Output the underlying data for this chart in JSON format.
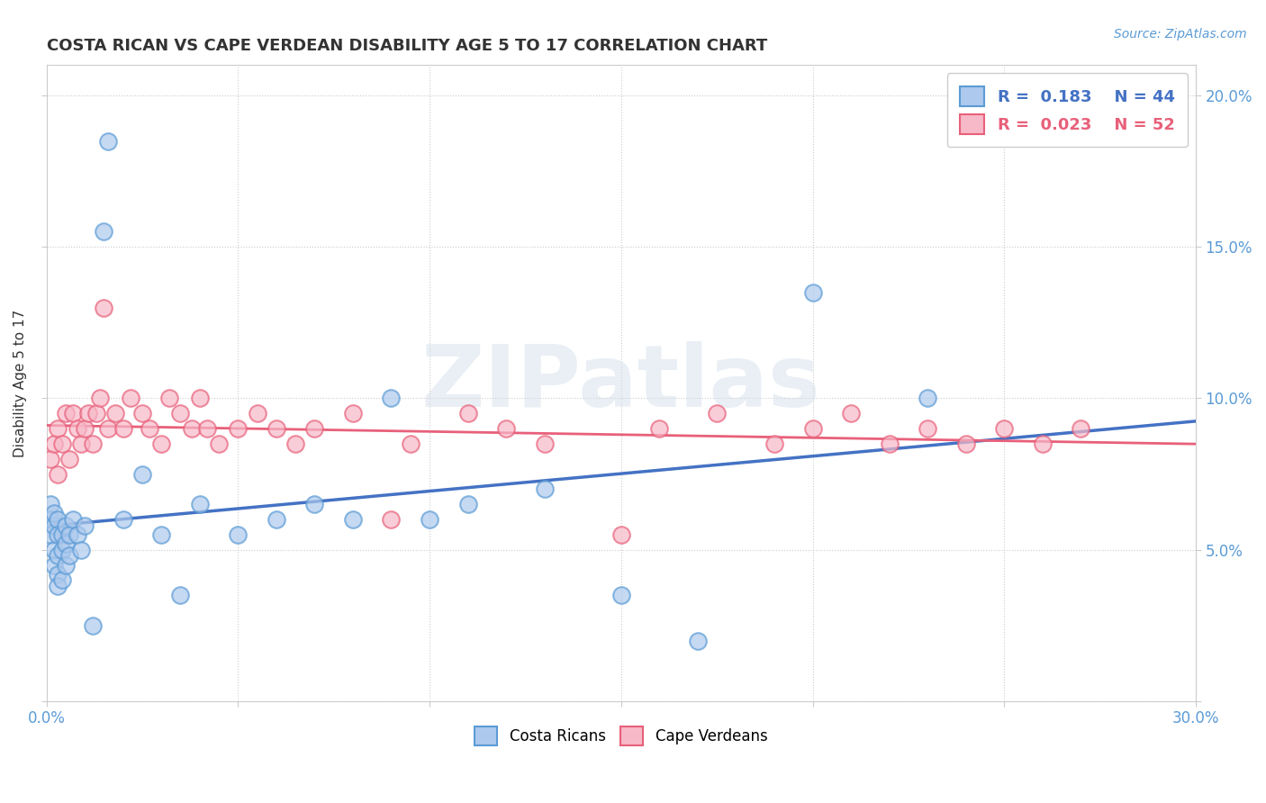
{
  "title": "COSTA RICAN VS CAPE VERDEAN DISABILITY AGE 5 TO 17 CORRELATION CHART",
  "source": "Source: ZipAtlas.com",
  "ylabel": "Disability Age 5 to 17",
  "xlim": [
    0.0,
    0.3
  ],
  "ylim": [
    0.0,
    0.21
  ],
  "xticks": [
    0.0,
    0.05,
    0.1,
    0.15,
    0.2,
    0.25,
    0.3
  ],
  "yticks": [
    0.0,
    0.05,
    0.1,
    0.15,
    0.2
  ],
  "legend_r1": "R =  0.183",
  "legend_n1": "N = 44",
  "legend_r2": "R =  0.023",
  "legend_n2": "N = 52",
  "cr_color": "#adc9ed",
  "cv_color": "#f7b8c8",
  "cr_edge_color": "#5b9bd5",
  "cv_edge_color": "#e8607a",
  "cr_line_color": "#4472c4",
  "cv_line_color": "#e8607a",
  "watermark": "ZIPatlas",
  "costa_ricans_x": [
    0.001,
    0.001,
    0.001,
    0.002,
    0.002,
    0.002,
    0.002,
    0.003,
    0.003,
    0.003,
    0.003,
    0.003,
    0.004,
    0.004,
    0.004,
    0.005,
    0.005,
    0.005,
    0.006,
    0.006,
    0.007,
    0.008,
    0.009,
    0.01,
    0.012,
    0.015,
    0.016,
    0.02,
    0.025,
    0.03,
    0.035,
    0.04,
    0.05,
    0.06,
    0.07,
    0.08,
    0.09,
    0.1,
    0.11,
    0.13,
    0.15,
    0.17,
    0.2,
    0.23
  ],
  "costa_ricans_y": [
    0.065,
    0.06,
    0.055,
    0.058,
    0.062,
    0.05,
    0.045,
    0.06,
    0.055,
    0.048,
    0.042,
    0.038,
    0.055,
    0.05,
    0.04,
    0.058,
    0.052,
    0.045,
    0.055,
    0.048,
    0.06,
    0.055,
    0.05,
    0.058,
    0.025,
    0.155,
    0.185,
    0.06,
    0.075,
    0.055,
    0.035,
    0.065,
    0.055,
    0.06,
    0.065,
    0.06,
    0.1,
    0.06,
    0.065,
    0.07,
    0.035,
    0.02,
    0.135,
    0.1
  ],
  "cape_verdeans_x": [
    0.001,
    0.002,
    0.003,
    0.003,
    0.004,
    0.005,
    0.006,
    0.007,
    0.008,
    0.009,
    0.01,
    0.011,
    0.012,
    0.013,
    0.014,
    0.015,
    0.016,
    0.018,
    0.02,
    0.022,
    0.025,
    0.027,
    0.03,
    0.032,
    0.035,
    0.038,
    0.04,
    0.042,
    0.045,
    0.05,
    0.055,
    0.06,
    0.065,
    0.07,
    0.08,
    0.09,
    0.095,
    0.11,
    0.12,
    0.13,
    0.15,
    0.16,
    0.175,
    0.19,
    0.2,
    0.21,
    0.22,
    0.23,
    0.24,
    0.25,
    0.26,
    0.27
  ],
  "cape_verdeans_y": [
    0.08,
    0.085,
    0.09,
    0.075,
    0.085,
    0.095,
    0.08,
    0.095,
    0.09,
    0.085,
    0.09,
    0.095,
    0.085,
    0.095,
    0.1,
    0.13,
    0.09,
    0.095,
    0.09,
    0.1,
    0.095,
    0.09,
    0.085,
    0.1,
    0.095,
    0.09,
    0.1,
    0.09,
    0.085,
    0.09,
    0.095,
    0.09,
    0.085,
    0.09,
    0.095,
    0.06,
    0.085,
    0.095,
    0.09,
    0.085,
    0.055,
    0.09,
    0.095,
    0.085,
    0.09,
    0.095,
    0.085,
    0.09,
    0.085,
    0.09,
    0.085,
    0.09
  ]
}
